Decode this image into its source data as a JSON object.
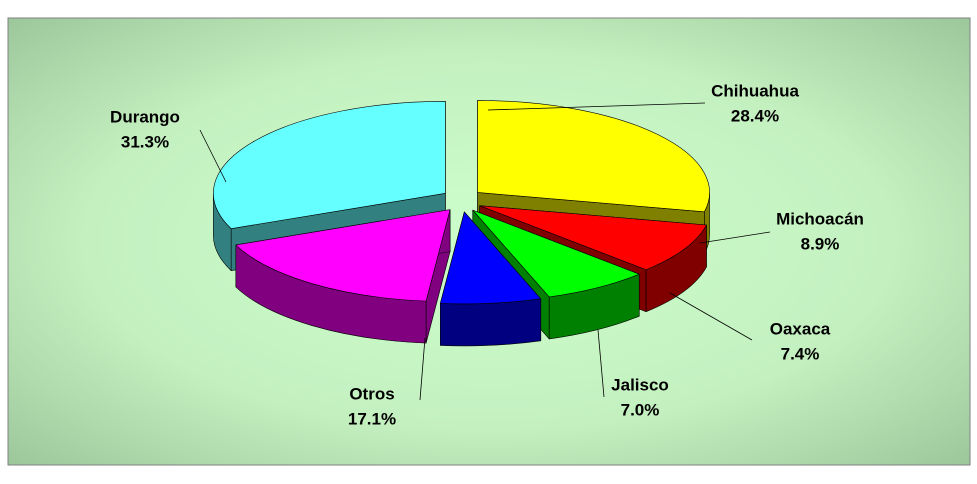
{
  "chart_data": {
    "type": "pie3d",
    "categories": [
      "Chihuahua",
      "Michoacán",
      "Oaxaca",
      "Jalisco",
      "Otros",
      "Durango"
    ],
    "values": [
      28.4,
      8.9,
      7.4,
      7.0,
      17.1,
      31.3
    ],
    "value_labels": [
      "28.4%",
      "8.9%",
      "7.4%",
      "7.0%",
      "17.1%",
      "31.3%"
    ],
    "colors": [
      "#ffff00",
      "#ff0000",
      "#00ff00",
      "#0000ff",
      "#ff00ff",
      "#66ffff"
    ]
  }
}
